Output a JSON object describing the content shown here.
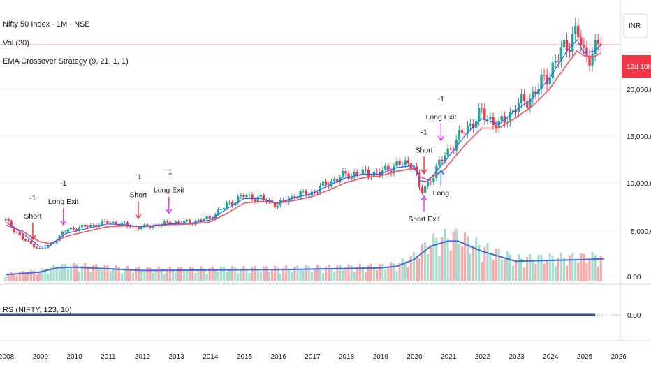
{
  "legend": {
    "symbol": "Nifty 50 Index · 1M · NSE",
    "volume": "Vol (20)",
    "strategy": "EMA Crossover Strategy (9, 21, 1, 1)",
    "rs": "RS (NIFTY, 123, 10)"
  },
  "price_axis": {
    "currency": "INR",
    "countdown": "12d 10h",
    "ticks": [
      "20,000.00",
      "15,000.00",
      "10,000.00",
      "5,000.00",
      "0.00"
    ],
    "rs_tick": "0.00"
  },
  "time_axis": [
    "2008",
    "2009",
    "2010",
    "2011",
    "2012",
    "2013",
    "2014",
    "2015",
    "2016",
    "2017",
    "2018",
    "2019",
    "2020",
    "2021",
    "2022",
    "2023",
    "2024",
    "2025",
    "2026"
  ],
  "annotations": [
    {
      "id": "short-2008",
      "lines": [
        "-1",
        "Short"
      ],
      "color": "#f23645",
      "dir": "down"
    },
    {
      "id": "longexit-2009",
      "lines": [
        "-1",
        "Long Exit"
      ],
      "color": "#e040fb",
      "dir": "down"
    },
    {
      "id": "short-2011",
      "lines": [
        "-1",
        "Short"
      ],
      "color": "#f23645",
      "dir": "down"
    },
    {
      "id": "longexit-2012",
      "lines": [
        "-1",
        "Long Exit"
      ],
      "color": "#e040fb",
      "dir": "down"
    },
    {
      "id": "short-2020",
      "lines": [
        "-1",
        "Short"
      ],
      "color": "#f23645",
      "dir": "down"
    },
    {
      "id": "longexit-2020",
      "lines": [
        "-1",
        "Long Exit"
      ],
      "color": "#e040fb",
      "dir": "down"
    },
    {
      "id": "long-2020",
      "lines": [
        "Long"
      ],
      "color": "#2962ff",
      "dir": "up"
    },
    {
      "id": "shortexit-2020",
      "lines": [
        "Short Exit"
      ],
      "color": "#e040fb",
      "dir": "up"
    }
  ],
  "colors": {
    "up": "#26a69a",
    "down": "#f23645",
    "ema_fast": "#2962ff",
    "ema_slow": "#f7525f",
    "vol_ma": "#3d6fd6",
    "rs_line": "#2a4f9e",
    "price_line": "#f7a1a8"
  },
  "chart_data": {
    "type": "candlestick",
    "interval": "1M",
    "x_range": [
      2008,
      2026
    ],
    "y_range": [
      0,
      27000
    ],
    "price_series": {
      "x": [
        2008.0,
        2008.5,
        2009.0,
        2009.3,
        2009.8,
        2010.5,
        2011.0,
        2011.5,
        2012.0,
        2012.8,
        2013.5,
        2014.0,
        2014.5,
        2015.0,
        2015.5,
        2016.0,
        2016.5,
        2017.0,
        2017.5,
        2018.0,
        2018.5,
        2019.0,
        2019.5,
        2020.0,
        2020.2,
        2020.4,
        2020.9,
        2021.5,
        2022.0,
        2022.5,
        2023.0,
        2023.5,
        2024.0,
        2024.5,
        2024.8,
        2025.0,
        2025.3,
        2025.5
      ],
      "close": [
        6000,
        4000,
        2900,
        3300,
        5000,
        5400,
        5800,
        5500,
        5200,
        5700,
        5800,
        6200,
        7600,
        8600,
        8300,
        7600,
        8600,
        8900,
        10000,
        10800,
        11000,
        11000,
        11900,
        12000,
        8800,
        9800,
        12900,
        15600,
        17400,
        16000,
        18000,
        19300,
        21800,
        24800,
        26200,
        23500,
        24000,
        25000
      ]
    },
    "ema_fast_close": [
      5800,
      4600,
      3200,
      3300,
      4600,
      5200,
      5600,
      5500,
      5300,
      5600,
      5700,
      6000,
      7200,
      8300,
      8300,
      7800,
      8400,
      8800,
      9700,
      10500,
      10900,
      10900,
      11600,
      11800,
      10200,
      10100,
      12200,
      15000,
      16800,
      16200,
      17700,
      19000,
      21200,
      24000,
      25200,
      23800,
      24000,
      24600
    ],
    "ema_slow_close": [
      5500,
      4800,
      3700,
      3500,
      4300,
      4900,
      5300,
      5400,
      5300,
      5500,
      5600,
      5800,
      6700,
      7800,
      8000,
      7800,
      8100,
      8500,
      9200,
      10000,
      10500,
      10700,
      11200,
      11500,
      10600,
      10300,
      11400,
      14000,
      15800,
      15800,
      16900,
      18200,
      20000,
      22600,
      24000,
      23500,
      23400,
      23800
    ],
    "volume_ma": {
      "x": [
        2008,
        2009,
        2009.5,
        2010,
        2012,
        2016,
        2019,
        2019.5,
        2020,
        2020.5,
        2021,
        2021.3,
        2022,
        2023,
        2024,
        2025,
        2025.6
      ],
      "y": [
        0.8,
        1.1,
        1.6,
        1.7,
        1.3,
        1.4,
        1.6,
        1.8,
        2.6,
        4.2,
        4.8,
        4.8,
        3.6,
        2.4,
        2.5,
        2.6,
        2.7
      ]
    },
    "rs_value": 0.0,
    "signals": [
      {
        "label": "Short",
        "value": -1,
        "x": 2008.8
      },
      {
        "label": "Long Exit",
        "value": -1,
        "x": 2009.7
      },
      {
        "label": "Short",
        "value": -1,
        "x": 2011.9
      },
      {
        "label": "Long Exit",
        "value": -1,
        "x": 2012.8
      },
      {
        "label": "Short",
        "value": -1,
        "x": 2020.3
      },
      {
        "label": "Long Exit",
        "value": -1,
        "x": 2020.8
      },
      {
        "label": "Long",
        "x": 2020.8
      },
      {
        "label": "Short Exit",
        "x": 2020.3
      }
    ]
  }
}
